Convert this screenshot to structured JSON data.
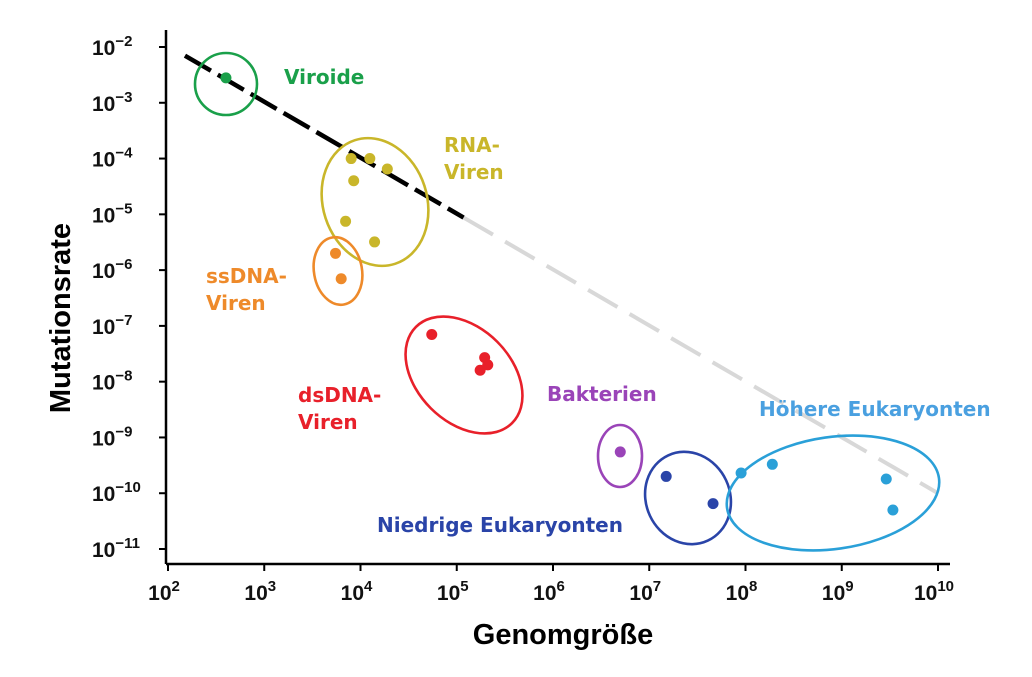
{
  "chart_data": {
    "type": "scatter",
    "title": "",
    "xlabel": "Genomgröße",
    "ylabel": "Mutationsrate",
    "x_scale": "log",
    "y_scale": "log",
    "xlim": [
      100,
      10000000000
    ],
    "ylim": [
      1e-11,
      0.01
    ],
    "x_ticks": [
      {
        "base": "10",
        "exp": "2",
        "value": 100
      },
      {
        "base": "10",
        "exp": "3",
        "value": 1000
      },
      {
        "base": "10",
        "exp": "4",
        "value": 10000
      },
      {
        "base": "10",
        "exp": "5",
        "value": 100000
      },
      {
        "base": "10",
        "exp": "6",
        "value": 1000000
      },
      {
        "base": "10",
        "exp": "7",
        "value": 10000000
      },
      {
        "base": "10",
        "exp": "8",
        "value": 100000000
      },
      {
        "base": "10",
        "exp": "9",
        "value": 1000000000
      },
      {
        "base": "10",
        "exp": "10",
        "value": 10000000000
      }
    ],
    "y_ticks": [
      {
        "base": "10",
        "exp": "−2",
        "value": 0.01
      },
      {
        "base": "10",
        "exp": "−3",
        "value": 0.001
      },
      {
        "base": "10",
        "exp": "−4",
        "value": 0.0001
      },
      {
        "base": "10",
        "exp": "−5",
        "value": 1e-05
      },
      {
        "base": "10",
        "exp": "−6",
        "value": 1e-06
      },
      {
        "base": "10",
        "exp": "−7",
        "value": 1e-07
      },
      {
        "base": "10",
        "exp": "−8",
        "value": 1e-08
      },
      {
        "base": "10",
        "exp": "−9",
        "value": 1e-09
      },
      {
        "base": "10",
        "exp": "−10",
        "value": 1e-10
      },
      {
        "base": "10",
        "exp": "−11",
        "value": 1e-11
      }
    ],
    "grid": false,
    "legend": "none",
    "series": [
      {
        "name": "Viroide",
        "color": "#1aa04a",
        "points": [
          [
            400,
            0.0028
          ]
        ],
        "ellipse": {
          "cx": 400,
          "cy": 0.0028,
          "rx_decades": 0.32,
          "ry_decades": 0.55,
          "angle": 0
        }
      },
      {
        "name": "RNA-Viren",
        "color": "#c9b62a",
        "points": [
          [
            8000,
            0.0001
          ],
          [
            12500,
            0.0001
          ],
          [
            8500,
            4e-05
          ],
          [
            19000,
            6.5e-05
          ],
          [
            7000,
            7.5e-06
          ],
          [
            14000,
            3.2e-06
          ]
        ]
      },
      {
        "name": "ssDNA-Viren",
        "color": "#ee8a2a",
        "points": [
          [
            5500,
            2e-06
          ],
          [
            6300,
            7e-07
          ]
        ]
      },
      {
        "name": "dsDNA-Viren",
        "color": "#e8202a",
        "points": [
          [
            55000,
            7e-08
          ],
          [
            195000,
            2.7e-08
          ],
          [
            210000,
            2e-08
          ],
          [
            175000,
            1.6e-08
          ]
        ]
      },
      {
        "name": "Bakterien",
        "color": "#9a44b8",
        "points": [
          [
            5000000,
            5.5e-10
          ]
        ]
      },
      {
        "name": "Niedrige Eukaryonten",
        "color": "#2a44a8",
        "points": [
          [
            15000000,
            2e-10
          ],
          [
            46000000,
            6.5e-11
          ]
        ]
      },
      {
        "name": "Höhere Eukaryonten",
        "color": "#2aa0d8",
        "points": [
          [
            90000000,
            2.3e-10
          ],
          [
            190000000,
            3.3e-10
          ],
          [
            2900000000,
            1.8e-10
          ],
          [
            3400000000,
            5e-11
          ]
        ]
      }
    ],
    "trendline": {
      "from": [
        150,
        0.007
      ],
      "to": [
        10000000000,
        1e-10
      ],
      "style": "dashed",
      "solid_color": "#000000",
      "fade_color": "#d8d8d8"
    }
  },
  "group_labels": [
    {
      "key": "viroide",
      "lines": [
        "Viroide"
      ],
      "color": "#1aa04a"
    },
    {
      "key": "rna",
      "lines": [
        "RNA-",
        "Viren"
      ],
      "color": "#c9b62a"
    },
    {
      "key": "ssdna",
      "lines": [
        "ssDNA-",
        "Viren"
      ],
      "color": "#ee8a2a"
    },
    {
      "key": "dsdna",
      "lines": [
        "dsDNA-",
        "Viren"
      ],
      "color": "#e8202a"
    },
    {
      "key": "bakterien",
      "lines": [
        "Bakterien"
      ],
      "color": "#9a44b8"
    },
    {
      "key": "niedrige",
      "lines": [
        "Niedrige Eukaryonten"
      ],
      "color": "#2a44a8"
    },
    {
      "key": "hoehere",
      "lines": [
        "Höhere Eukaryonten"
      ],
      "color": "#4aa0e0"
    }
  ]
}
